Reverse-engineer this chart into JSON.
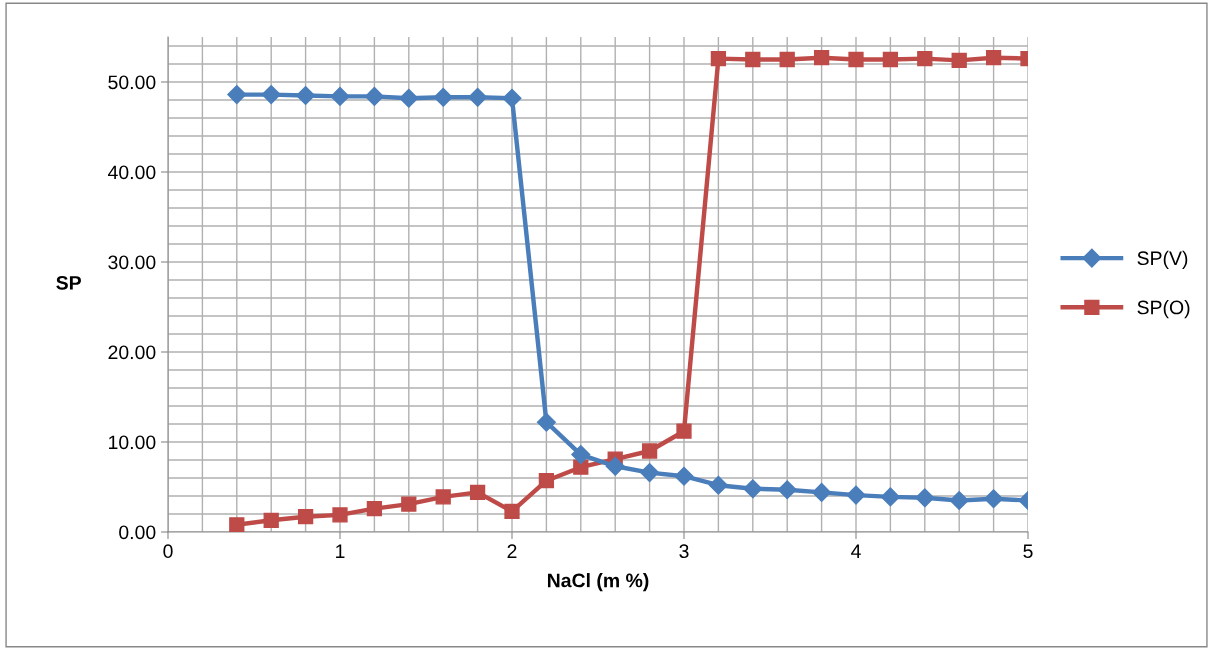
{
  "chart_data": {
    "type": "line",
    "xlabel": "NaCl (m %)",
    "ylabel": "SP",
    "x": [
      0.4,
      0.6,
      0.8,
      1.0,
      1.2,
      1.4,
      1.6,
      1.8,
      2.0,
      2.2,
      2.4,
      2.6,
      2.8,
      3.0,
      3.2,
      3.4,
      3.6,
      3.8,
      4.0,
      4.2,
      4.4,
      4.6,
      4.8,
      5.0
    ],
    "series": [
      {
        "name": "SP(V)",
        "color": "#4a7ebb",
        "marker": "diamond",
        "values": [
          48.6,
          48.6,
          48.5,
          48.4,
          48.4,
          48.2,
          48.3,
          48.3,
          48.2,
          12.2,
          8.6,
          7.3,
          6.6,
          6.2,
          5.2,
          4.8,
          4.7,
          4.4,
          4.1,
          3.9,
          3.8,
          3.5,
          3.7,
          3.5
        ]
      },
      {
        "name": "SP(O)",
        "color": "#be4b48",
        "marker": "square",
        "values": [
          0.8,
          1.3,
          1.7,
          1.9,
          2.6,
          3.1,
          3.9,
          4.4,
          2.3,
          5.7,
          7.2,
          8.1,
          9.0,
          11.2,
          52.6,
          52.5,
          52.5,
          52.7,
          52.5,
          52.5,
          52.6,
          52.4,
          52.7,
          52.6
        ]
      }
    ],
    "xlim": [
      0,
      5
    ],
    "xticks": [
      0,
      1,
      2,
      3,
      4,
      5
    ],
    "ylim": [
      0,
      55
    ],
    "yticks": [
      {
        "value": 0,
        "label": "0.00"
      },
      {
        "value": 10,
        "label": "10.00"
      },
      {
        "value": 20,
        "label": "20.00"
      },
      {
        "value": 30,
        "label": "30.00"
      },
      {
        "value": 40,
        "label": "40.00"
      },
      {
        "value": 50,
        "label": "50.00"
      }
    ],
    "grid": true,
    "legend": "right",
    "line_style": "solid"
  }
}
